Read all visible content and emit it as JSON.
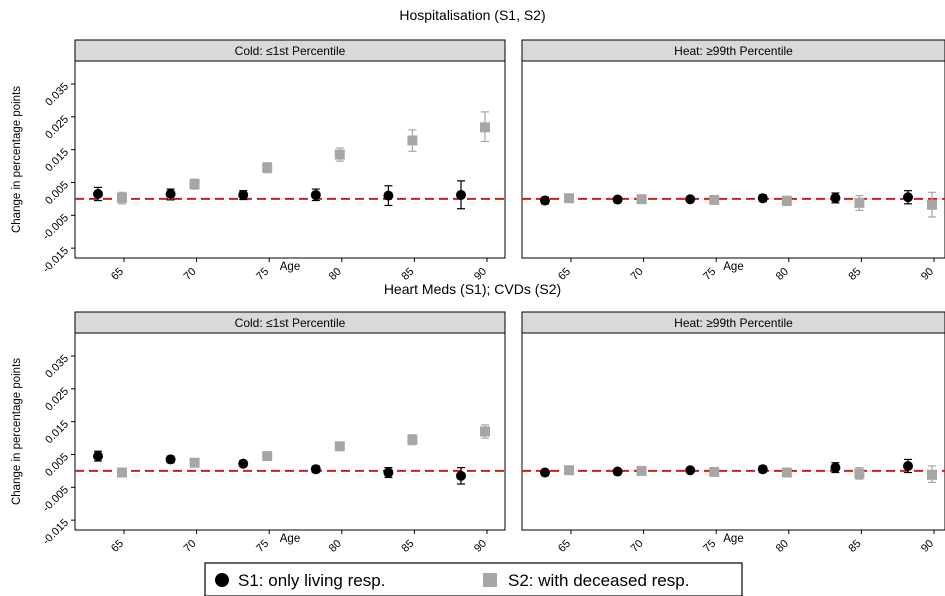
{
  "chart_data": [
    {
      "type": "scatter",
      "title": "Hospitalisation (S1, S2)",
      "ylabel": "Change in percentage points",
      "xlabel": "Age",
      "ylim": [
        -0.018,
        0.042
      ],
      "yticks": [
        "-0.015",
        "-0.005",
        "0.005",
        "0.015",
        "0.025",
        "0.035"
      ],
      "reference_line": 0,
      "panels": [
        {
          "label": "Cold: ≤1st Percentile",
          "categories": [
            "65",
            "70",
            "75",
            "80",
            "85",
            "90"
          ],
          "series": [
            {
              "name": "S1: only living resp.",
              "marker": "circle",
              "color": "#000000",
              "values": [
                0.0015,
                0.0015,
                0.0012,
                0.0012,
                0.001,
                0.0012
              ],
              "ci_low": [
                -0.0005,
                -0.0003,
                -0.0002,
                -0.0005,
                -0.002,
                -0.003
              ],
              "ci_high": [
                0.0035,
                0.003,
                0.0025,
                0.003,
                0.004,
                0.0055
              ]
            },
            {
              "name": "S2: with deceased resp.",
              "marker": "square",
              "color": "#a6a6a6",
              "values": [
                0.0003,
                0.0045,
                0.0095,
                0.0135,
                0.0178,
                0.0218
              ],
              "ci_low": [
                -0.0015,
                0.003,
                0.008,
                0.0115,
                0.0145,
                0.0175
              ],
              "ci_high": [
                0.002,
                0.006,
                0.011,
                0.0155,
                0.021,
                0.0265
              ]
            }
          ]
        },
        {
          "label": "Heat: ≥99th Percentile",
          "categories": [
            "65",
            "70",
            "75",
            "80",
            "85",
            "90"
          ],
          "series": [
            {
              "name": "S1: only living resp.",
              "marker": "circle",
              "color": "#000000",
              "values": [
                -0.0005,
                -0.0002,
                -0.0001,
                0.0002,
                0.0003,
                0.0005
              ],
              "ci_low": [
                -0.0015,
                -0.001,
                -0.0008,
                -0.0008,
                -0.0012,
                -0.0015
              ],
              "ci_high": [
                0.0005,
                0.0006,
                0.0006,
                0.0012,
                0.0018,
                0.0025
              ]
            },
            {
              "name": "S2: with deceased resp.",
              "marker": "square",
              "color": "#a6a6a6",
              "values": [
                0.0002,
                -0.0001,
                -0.0003,
                -0.0006,
                -0.0012,
                -0.0018
              ],
              "ci_low": [
                -0.0008,
                -0.0008,
                -0.001,
                -0.002,
                -0.0035,
                -0.0055
              ],
              "ci_high": [
                0.0012,
                0.0006,
                0.0004,
                0.0008,
                0.001,
                0.002
              ]
            }
          ]
        }
      ]
    },
    {
      "type": "scatter",
      "title": "Heart Meds (S1); CVDs (S2)",
      "ylabel": "Change in percentage points",
      "xlabel": "Age",
      "ylim": [
        -0.018,
        0.042
      ],
      "yticks": [
        "-0.015",
        "-0.005",
        "0.005",
        "0.015",
        "0.025",
        "0.035"
      ],
      "reference_line": 0,
      "panels": [
        {
          "label": "Cold: ≤1st Percentile",
          "categories": [
            "65",
            "70",
            "75",
            "80",
            "85",
            "90"
          ],
          "series": [
            {
              "name": "S1: only living resp.",
              "marker": "circle",
              "color": "#000000",
              "values": [
                0.0045,
                0.0035,
                0.0022,
                0.0005,
                -0.0005,
                -0.0015
              ],
              "ci_low": [
                0.003,
                0.0025,
                0.0014,
                -0.0005,
                -0.002,
                -0.004
              ],
              "ci_high": [
                0.006,
                0.0045,
                0.003,
                0.0015,
                0.001,
                0.001
              ]
            },
            {
              "name": "S2: with deceased resp.",
              "marker": "square",
              "color": "#a6a6a6",
              "values": [
                -0.0005,
                0.0025,
                0.0045,
                0.0075,
                0.0095,
                0.012
              ],
              "ci_low": [
                -0.0012,
                0.0018,
                0.0038,
                0.0066,
                0.008,
                0.01
              ],
              "ci_high": [
                0.0002,
                0.0032,
                0.0052,
                0.0084,
                0.011,
                0.014
              ]
            }
          ]
        },
        {
          "label": "Heat: ≥99th Percentile",
          "categories": [
            "65",
            "70",
            "75",
            "80",
            "85",
            "90"
          ],
          "series": [
            {
              "name": "S1: only living resp.",
              "marker": "circle",
              "color": "#000000",
              "values": [
                -0.0005,
                -0.0002,
                0.0002,
                0.0005,
                0.001,
                0.0015
              ],
              "ci_low": [
                -0.0012,
                -0.0008,
                -0.0004,
                -0.0005,
                -0.0005,
                -0.0005
              ],
              "ci_high": [
                0.0002,
                0.0004,
                0.0008,
                0.0015,
                0.0025,
                0.0035
              ]
            },
            {
              "name": "S2: with deceased resp.",
              "marker": "square",
              "color": "#a6a6a6",
              "values": [
                0.0002,
                0.0,
                -0.0003,
                -0.0005,
                -0.0008,
                -0.0012
              ],
              "ci_low": [
                -0.0005,
                -0.0007,
                -0.001,
                -0.0018,
                -0.0025,
                -0.0035
              ],
              "ci_high": [
                0.0009,
                0.0007,
                0.0004,
                0.0008,
                0.001,
                0.0015
              ]
            }
          ]
        }
      ]
    }
  ],
  "legend": {
    "position": "bottom",
    "items": [
      {
        "label": "S1: only living resp.",
        "marker": "circle",
        "color": "#000000"
      },
      {
        "label": "S2: with deceased resp.",
        "marker": "square",
        "color": "#a6a6a6"
      }
    ]
  },
  "colors": {
    "reference_line": "#cc1f1f",
    "strip_fill": "#d9d9d9",
    "s2_marker": "#a6a6a6"
  }
}
